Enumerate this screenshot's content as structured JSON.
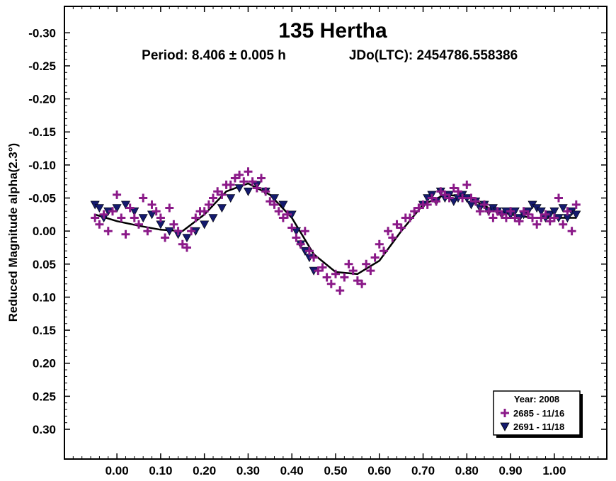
{
  "chart_data": {
    "type": "scatter",
    "title": "135 Hertha",
    "subtitle_period": "Period: 8.406 ± 0.005 h",
    "subtitle_epoch": "JDo(LTC): 2454786.558386",
    "xlabel": "",
    "ylabel": "Reduced Magnitude alpha(2.3°)",
    "xlim": [
      -0.12,
      1.12
    ],
    "ylim": [
      -0.34,
      0.345
    ],
    "y_inverted": true,
    "grid": false,
    "legend_position": "bottom-right",
    "x_ticks": [
      0.0,
      0.1,
      0.2,
      0.3,
      0.4,
      0.5,
      0.6,
      0.7,
      0.8,
      0.9,
      1.0
    ],
    "x_tick_labels": [
      "0.00",
      "0.10",
      "0.20",
      "0.30",
      "0.40",
      "0.50",
      "0.60",
      "0.70",
      "0.80",
      "0.90",
      "1.00"
    ],
    "y_ticks": [
      -0.3,
      -0.25,
      -0.2,
      -0.15,
      -0.1,
      -0.05,
      0.0,
      0.05,
      0.1,
      0.15,
      0.2,
      0.25,
      0.3
    ],
    "y_tick_labels": [
      "-0.30",
      "-0.25",
      "-0.20",
      "-0.15",
      "-0.10",
      "-0.05",
      "0.00",
      "0.05",
      "0.10",
      "0.15",
      "0.20",
      "0.25",
      "0.30"
    ],
    "legend_title": "Year: 2008",
    "fit_curve": {
      "color": "#000000",
      "x": [
        -0.05,
        0.0,
        0.05,
        0.1,
        0.15,
        0.2,
        0.25,
        0.3,
        0.35,
        0.4,
        0.45,
        0.5,
        0.55,
        0.6,
        0.65,
        0.7,
        0.75,
        0.8,
        0.85,
        0.9,
        0.95,
        1.0,
        1.05
      ],
      "y": [
        -0.025,
        -0.015,
        -0.008,
        -0.002,
        0.0,
        -0.025,
        -0.06,
        -0.072,
        -0.055,
        -0.02,
        0.035,
        0.062,
        0.065,
        0.045,
        0.0,
        -0.04,
        -0.055,
        -0.052,
        -0.035,
        -0.025,
        -0.02,
        -0.02,
        -0.02
      ]
    },
    "series": [
      {
        "name": "2685 - 11/16",
        "marker": "plus",
        "color": "#8b1a89",
        "x": [
          -0.05,
          -0.04,
          -0.03,
          -0.02,
          -0.01,
          0.0,
          0.01,
          0.02,
          0.03,
          0.04,
          0.05,
          0.06,
          0.07,
          0.08,
          0.09,
          0.1,
          0.11,
          0.12,
          0.13,
          0.14,
          0.15,
          0.16,
          0.17,
          0.18,
          0.19,
          0.2,
          0.21,
          0.22,
          0.23,
          0.24,
          0.25,
          0.26,
          0.27,
          0.28,
          0.29,
          0.3,
          0.31,
          0.32,
          0.33,
          0.34,
          0.35,
          0.36,
          0.37,
          0.38,
          0.39,
          0.4,
          0.41,
          0.42,
          0.43,
          0.44,
          0.45,
          0.46,
          0.47,
          0.48,
          0.49,
          0.5,
          0.51,
          0.52,
          0.53,
          0.54,
          0.55,
          0.56,
          0.57,
          0.58,
          0.59,
          0.6,
          0.61,
          0.62,
          0.63,
          0.64,
          0.65,
          0.66,
          0.67,
          0.68,
          0.69,
          0.7,
          0.71,
          0.72,
          0.73,
          0.74,
          0.75,
          0.76,
          0.77,
          0.78,
          0.79,
          0.8,
          0.81,
          0.82,
          0.83,
          0.84,
          0.85,
          0.86,
          0.87,
          0.88,
          0.89,
          0.9,
          0.91,
          0.92,
          0.93,
          0.94,
          0.95,
          0.96,
          0.97,
          0.98,
          0.99,
          1.0,
          1.01,
          1.02,
          1.03,
          1.04,
          1.05
        ],
        "y": [
          -0.02,
          -0.01,
          -0.025,
          0.0,
          -0.03,
          -0.055,
          -0.02,
          0.005,
          -0.035,
          -0.02,
          -0.01,
          -0.05,
          0.0,
          -0.04,
          -0.03,
          -0.02,
          0.01,
          -0.035,
          -0.01,
          0.0,
          0.02,
          0.025,
          0.0,
          -0.02,
          -0.03,
          -0.03,
          -0.04,
          -0.05,
          -0.06,
          -0.055,
          -0.07,
          -0.07,
          -0.08,
          -0.085,
          -0.075,
          -0.09,
          -0.075,
          -0.065,
          -0.08,
          -0.06,
          -0.045,
          -0.04,
          -0.03,
          -0.02,
          -0.025,
          -0.005,
          0.01,
          0.02,
          0.0,
          0.03,
          0.04,
          0.06,
          0.055,
          0.07,
          0.08,
          0.065,
          0.09,
          0.07,
          0.05,
          0.06,
          0.075,
          0.08,
          0.05,
          0.06,
          0.04,
          0.02,
          0.03,
          0.0,
          0.01,
          -0.01,
          -0.005,
          -0.02,
          -0.02,
          -0.03,
          -0.035,
          -0.04,
          -0.04,
          -0.05,
          -0.045,
          -0.06,
          -0.055,
          -0.05,
          -0.065,
          -0.06,
          -0.05,
          -0.07,
          -0.05,
          -0.045,
          -0.03,
          -0.04,
          -0.03,
          -0.02,
          -0.03,
          -0.025,
          -0.02,
          -0.03,
          -0.02,
          -0.015,
          -0.03,
          -0.025,
          -0.02,
          -0.01,
          -0.02,
          -0.025,
          -0.015,
          -0.02,
          -0.05,
          -0.01,
          -0.03,
          0.0,
          -0.04
        ]
      },
      {
        "name": "2691 - 11/18",
        "marker": "triangle-down",
        "color": "#141a6e",
        "x": [
          -0.05,
          -0.04,
          -0.03,
          -0.02,
          0.0,
          0.02,
          0.04,
          0.06,
          0.08,
          0.1,
          0.12,
          0.14,
          0.16,
          0.18,
          0.2,
          0.22,
          0.24,
          0.26,
          0.28,
          0.3,
          0.32,
          0.34,
          0.36,
          0.38,
          0.4,
          0.41,
          0.42,
          0.43,
          0.44,
          0.45,
          0.7,
          0.71,
          0.72,
          0.73,
          0.74,
          0.75,
          0.76,
          0.77,
          0.78,
          0.79,
          0.8,
          0.81,
          0.82,
          0.83,
          0.84,
          0.85,
          0.86,
          0.87,
          0.88,
          0.89,
          0.9,
          0.91,
          0.92,
          0.93,
          0.94,
          0.95,
          0.96,
          0.97,
          0.98,
          0.99,
          1.0,
          1.01,
          1.02,
          1.03,
          1.04,
          1.05
        ],
        "y": [
          -0.04,
          -0.035,
          -0.02,
          -0.03,
          -0.035,
          -0.04,
          -0.03,
          -0.02,
          -0.025,
          -0.01,
          0.0,
          0.005,
          0.01,
          0.0,
          -0.01,
          -0.02,
          -0.035,
          -0.05,
          -0.065,
          -0.06,
          -0.07,
          -0.06,
          -0.05,
          -0.04,
          -0.025,
          0.0,
          0.02,
          0.03,
          0.04,
          0.06,
          -0.04,
          -0.05,
          -0.055,
          -0.045,
          -0.06,
          -0.05,
          -0.055,
          -0.045,
          -0.05,
          -0.055,
          -0.05,
          -0.04,
          -0.045,
          -0.035,
          -0.04,
          -0.03,
          -0.035,
          -0.03,
          -0.025,
          -0.03,
          -0.025,
          -0.03,
          -0.02,
          -0.025,
          -0.03,
          -0.04,
          -0.035,
          -0.03,
          -0.02,
          -0.025,
          -0.03,
          -0.02,
          -0.035,
          -0.02,
          -0.03,
          -0.025
        ]
      }
    ]
  }
}
